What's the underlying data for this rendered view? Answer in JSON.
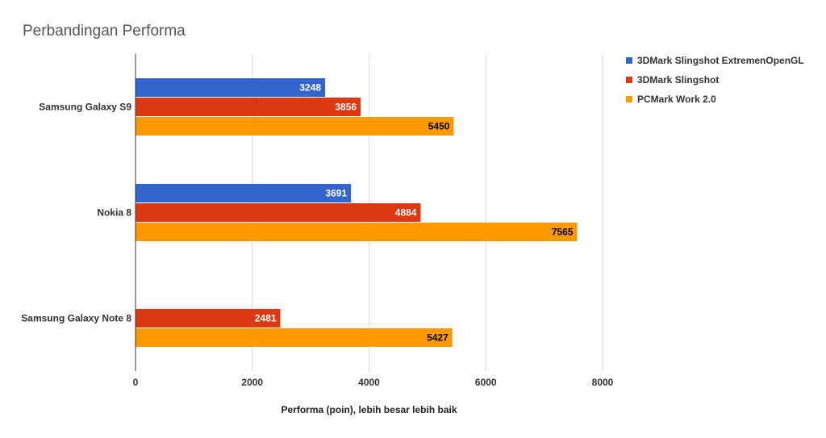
{
  "chart_data": {
    "type": "bar",
    "orientation": "horizontal",
    "title": "Perbandingan Performa",
    "xlabel": "Performa (poin), lebih besar lebih baik",
    "ylabel": "",
    "categories": [
      "Samsung Galaxy S9",
      "Nokia 8",
      "Samsung Galaxy Note 8"
    ],
    "series": [
      {
        "name": "3DMark Slingshot ExtremenOpenGL",
        "color": "#3366cc",
        "label_color": "#ffffff",
        "values": [
          3248,
          3691,
          null
        ]
      },
      {
        "name": "3DMark Slingshot",
        "color": "#dc3912",
        "label_color": "#ffffff",
        "values": [
          3856,
          4884,
          2481
        ]
      },
      {
        "name": "PCMark Work 2.0",
        "color": "#ff9900",
        "label_color": "#000000",
        "values": [
          5450,
          7565,
          5427
        ]
      }
    ],
    "xlim": [
      0,
      8000
    ],
    "xticks": [
      0,
      2000,
      4000,
      6000,
      8000
    ],
    "grid": true,
    "legend_position": "right"
  }
}
